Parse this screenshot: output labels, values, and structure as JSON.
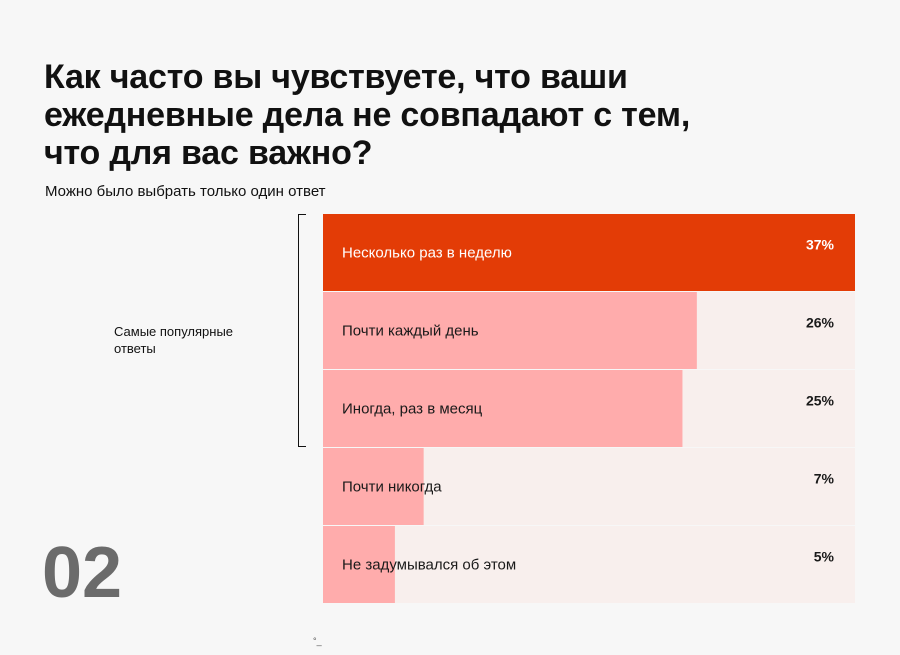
{
  "title": "Как часто вы чувствуете, что ваши ежедневные дела не совпадают с тем, что для вас важно?",
  "subtitle": "Можно было выбрать только один ответ",
  "bracket_label": "Самые популярные ответы",
  "page_number": "02",
  "cursor_mark": "°_",
  "colors": {
    "highlight": "#e33c06",
    "bar": "#ffacac",
    "track": "#f8efed",
    "background": "#f7f7f7"
  },
  "chart_data": {
    "type": "bar",
    "orientation": "horizontal",
    "categories": [
      "Несколько раз в неделю",
      "Почти каждый день",
      "Иногда, раз в месяц",
      "Почти никогда",
      "Не задумывался об этом"
    ],
    "values": [
      37,
      26,
      25,
      7,
      5
    ],
    "value_labels": [
      "37%",
      "26%",
      "25%",
      "7%",
      "5%"
    ],
    "highlighted_index": 0,
    "xlim": [
      0,
      37
    ],
    "unit": "%"
  }
}
